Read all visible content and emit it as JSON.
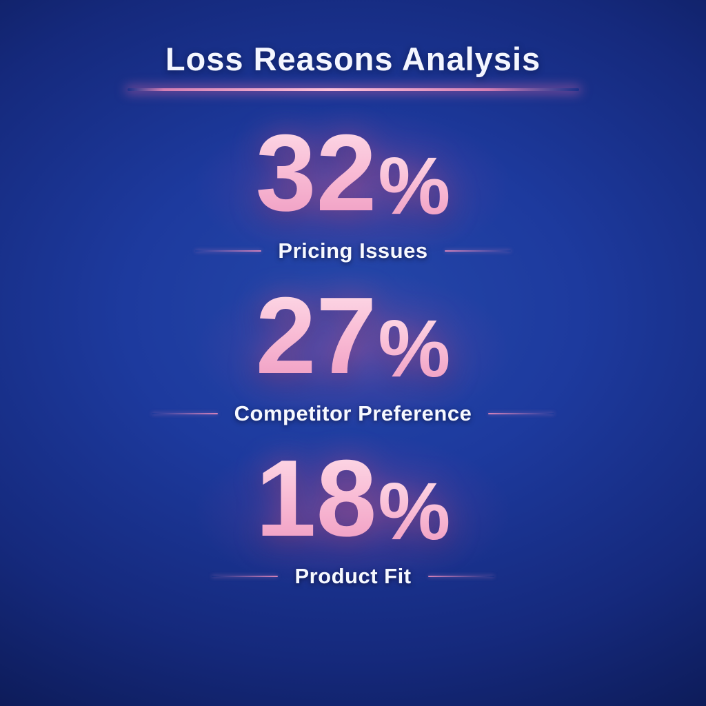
{
  "title": "Loss Reasons Analysis",
  "percent_sign": "%",
  "chart_data": {
    "type": "table",
    "title": "Loss Reasons Analysis",
    "categories": [
      "Pricing Issues",
      "Competitor Preference",
      "Product Fit"
    ],
    "values": [
      32,
      27,
      18
    ],
    "unit": "%",
    "layout": "vertical centered stat list, largest value first",
    "legend": false,
    "grid": false
  },
  "colors": {
    "background_center": "#1d3a9e",
    "background_edge": "#081238",
    "accent_pink": "#f48cba",
    "underline_core": "#ffc2da",
    "number_gradient_top": "#fddce8",
    "number_gradient_bottom": "#ef9cc2",
    "text_white": "#f4f6ff"
  }
}
